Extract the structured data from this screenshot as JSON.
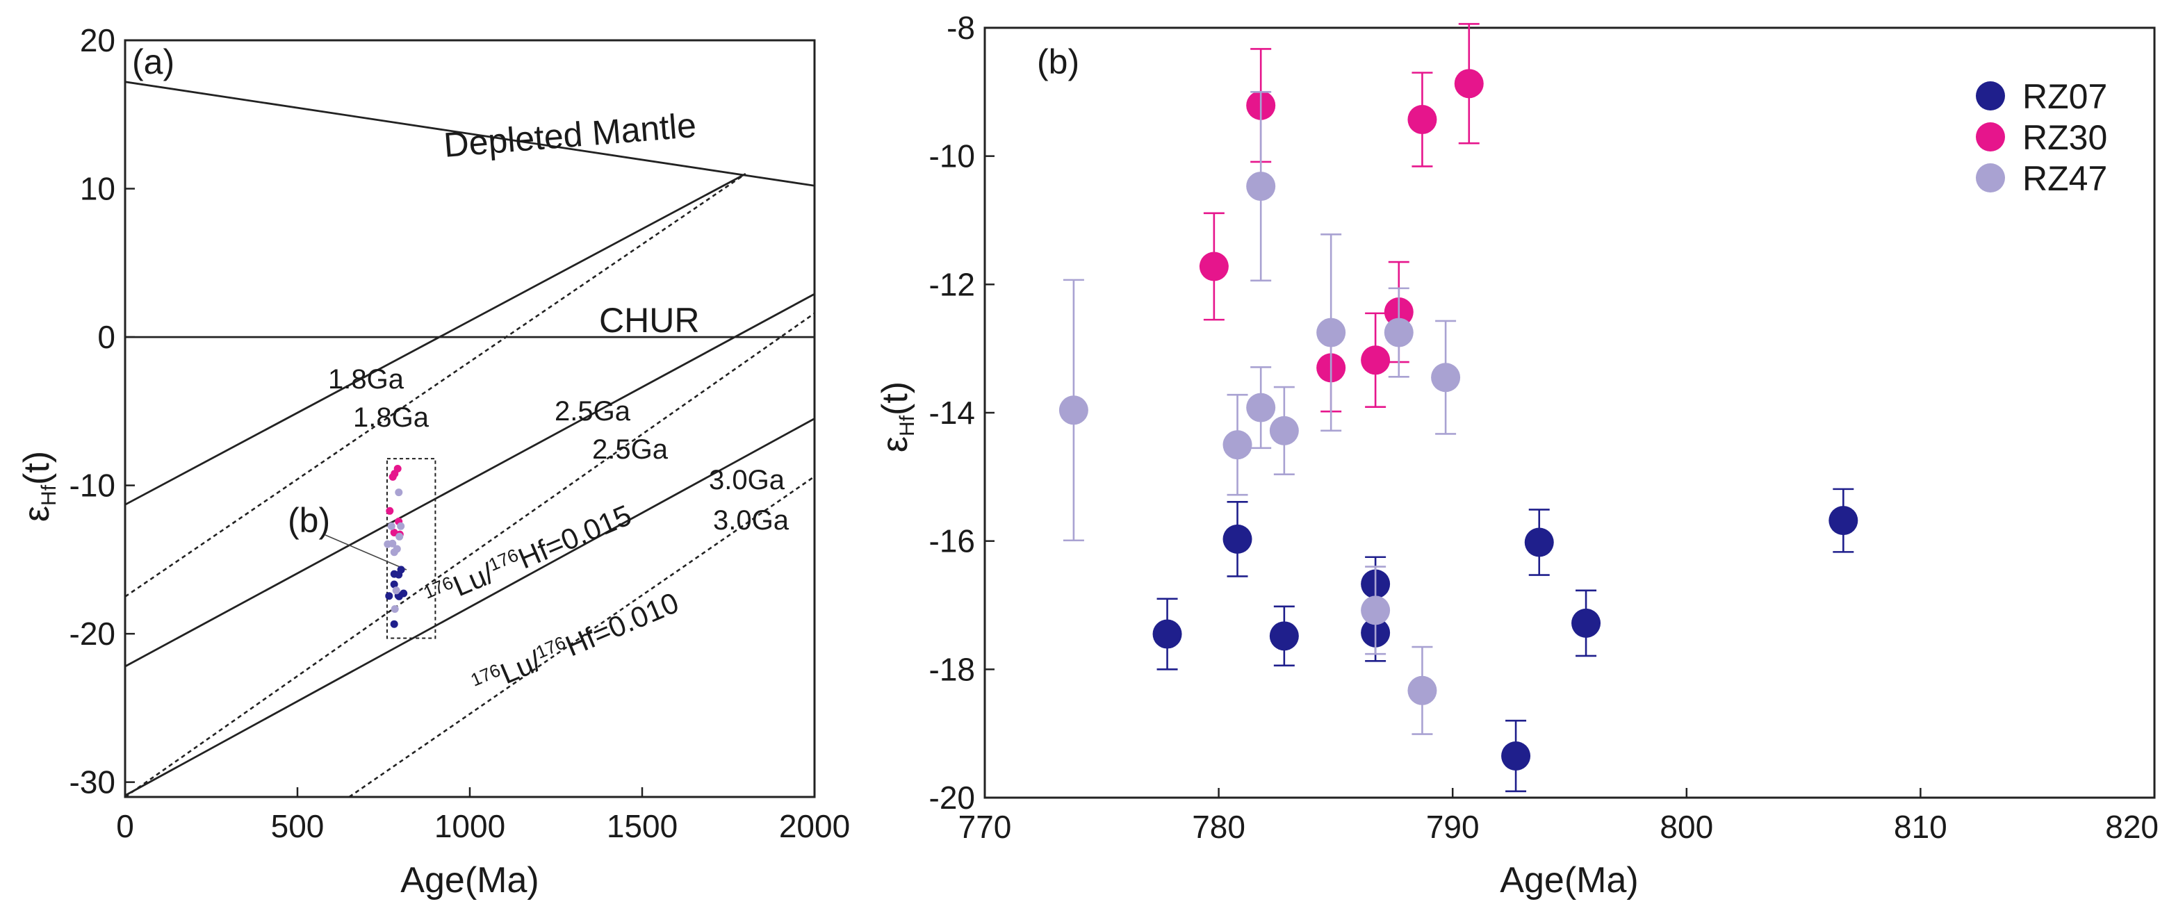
{
  "figure": {
    "panel_a": {
      "label": "(a)",
      "xlabel": "Age(Ma)",
      "ylabel_main": "ε",
      "ylabel_sub": "Hf",
      "ylabel_tail": "(t)",
      "lines": {
        "depleted_mantle": "Depleted Mantle",
        "chur": "CHUR",
        "lu015_pre": "176",
        "lu015_mid": "Lu/",
        "lu015_sup": "176",
        "lu015_post": "Hf=0.015",
        "lu010_pre": "176",
        "lu010_mid": "Lu/",
        "lu010_sup": "176",
        "lu010_post": "Hf=0.010",
        "g18a": "1.8Ga",
        "g18b": "1.8Ga",
        "g25a": "2.5Ga",
        "g25b": "2.5Ga",
        "g30a": "3.0Ga",
        "g30b": "3.0Ga",
        "inset": "(b)"
      }
    },
    "panel_b": {
      "label": "(b)",
      "xlabel": "Age(Ma)",
      "ylabel_main": "ε",
      "ylabel_sub": "Hf",
      "ylabel_tail": "(t)"
    }
  },
  "chart_data": [
    {
      "type": "line",
      "title": "(a)",
      "xlabel": "Age(Ma)",
      "ylabel": "εHf(t)",
      "xlim": [
        0,
        2000
      ],
      "ylim": [
        -31,
        20
      ],
      "xticks": [
        0,
        500,
        1000,
        1500,
        2000
      ],
      "yticks": [
        20,
        10,
        0,
        -10,
        -20,
        -30
      ],
      "series": [
        {
          "name": "Depleted Mantle",
          "style": "solid",
          "x": [
            0,
            2000
          ],
          "y": [
            17.2,
            10.2
          ]
        },
        {
          "name": "CHUR",
          "style": "solid",
          "x": [
            0,
            2000
          ],
          "y": [
            0,
            0
          ]
        },
        {
          "name": "1.8Ga (solid)",
          "style": "solid",
          "x": [
            0,
            1800
          ],
          "y": [
            -11.3,
            11.0
          ]
        },
        {
          "name": "1.8Ga (dashed)",
          "style": "dashed",
          "x": [
            0,
            1800
          ],
          "y": [
            -17.5,
            11.0
          ]
        },
        {
          "name": "2.5Ga (solid)",
          "style": "solid",
          "x": [
            0,
            2000
          ],
          "y": [
            -22.2,
            2.9
          ]
        },
        {
          "name": "2.5Ga (dashed)",
          "style": "dashed",
          "x": [
            0,
            2000
          ],
          "y": [
            -31.0,
            1.6
          ]
        },
        {
          "name": "3.0Ga (solid)",
          "style": "solid",
          "x": [
            0,
            2000
          ],
          "y": [
            -30.9,
            -5.5
          ]
        },
        {
          "name": "3.0Ga (dashed)",
          "style": "dashed",
          "x": [
            650,
            2000
          ],
          "y": [
            -31.0,
            -9.4
          ]
        }
      ],
      "inset_box": {
        "x": [
          760,
          900
        ],
        "y": [
          -20.3,
          -8.2
        ],
        "label": "(b)"
      }
    },
    {
      "type": "scatter",
      "title": "(b)",
      "xlabel": "Age(Ma)",
      "ylabel": "εHf(t)",
      "xlim": [
        770,
        820
      ],
      "ylim": [
        -20,
        -8
      ],
      "xticks": [
        770,
        780,
        790,
        800,
        810,
        820
      ],
      "yticks": [
        -8,
        -10,
        -12,
        -14,
        -16,
        -18,
        -20
      ],
      "legend_position": "top-right",
      "series": [
        {
          "name": "RZ07",
          "color": "#1f1f8c",
          "points": [
            {
              "x": 777.8,
              "y": -17.45,
              "err": 0.55
            },
            {
              "x": 780.8,
              "y": -15.97,
              "err": 0.58
            },
            {
              "x": 782.8,
              "y": -17.48,
              "err": 0.46
            },
            {
              "x": 786.7,
              "y": -16.67,
              "err": 0.42
            },
            {
              "x": 786.7,
              "y": -17.43,
              "err": 0.44
            },
            {
              "x": 792.7,
              "y": -19.35,
              "err": 0.55
            },
            {
              "x": 793.7,
              "y": -16.02,
              "err": 0.51
            },
            {
              "x": 795.7,
              "y": -17.28,
              "err": 0.51
            },
            {
              "x": 806.7,
              "y": -15.68,
              "err": 0.49
            }
          ]
        },
        {
          "name": "RZ30",
          "color": "#e6158c",
          "points": [
            {
              "x": 779.8,
              "y": -11.72,
              "err": 0.83
            },
            {
              "x": 781.8,
              "y": -9.21,
              "err": 0.88
            },
            {
              "x": 784.8,
              "y": -13.3,
              "err": 0.68
            },
            {
              "x": 786.7,
              "y": -13.18,
              "err": 0.73
            },
            {
              "x": 787.7,
              "y": -12.43,
              "err": 0.78
            },
            {
              "x": 788.7,
              "y": -9.43,
              "err": 0.73
            },
            {
              "x": 790.7,
              "y": -8.87,
              "err": 0.93
            }
          ]
        },
        {
          "name": "RZ47",
          "color": "#a9a2d2",
          "points": [
            {
              "x": 773.8,
              "y": -13.96,
              "err": 2.03
            },
            {
              "x": 780.8,
              "y": -14.5,
              "err": 0.78
            },
            {
              "x": 781.8,
              "y": -10.47,
              "err": 1.47
            },
            {
              "x": 781.8,
              "y": -13.92,
              "err": 0.63
            },
            {
              "x": 782.8,
              "y": -14.28,
              "err": 0.68
            },
            {
              "x": 784.8,
              "y": -12.75,
              "err": 1.53
            },
            {
              "x": 786.7,
              "y": -17.08,
              "err": 0.68
            },
            {
              "x": 787.7,
              "y": -12.75,
              "err": 0.69
            },
            {
              "x": 788.7,
              "y": -18.33,
              "err": 0.68
            },
            {
              "x": 789.7,
              "y": -13.45,
              "err": 0.88
            }
          ]
        }
      ]
    }
  ]
}
